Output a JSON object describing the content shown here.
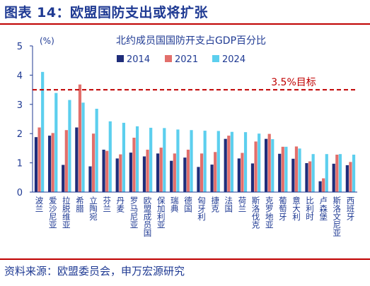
{
  "header": {
    "title": "图表 14：欧盟国防支出或将扩张"
  },
  "footer": {
    "source": "资料来源：欧盟委员会，申万宏源研究"
  },
  "chart_data": {
    "type": "bar",
    "title": "北约成员国国防开支占GDP百分比",
    "ylabel": "(%)",
    "xlabel": "",
    "ylim": [
      0,
      5
    ],
    "yticks": [
      0,
      1,
      2,
      3,
      4,
      5
    ],
    "grid": false,
    "legend_position": "top",
    "categories": [
      "波兰",
      "爱沙尼亚",
      "拉脱维亚",
      "希腊",
      "立陶宛",
      "芬兰",
      "丹麦",
      "罗马尼亚",
      "欧盟成员国",
      "保加利亚",
      "瑞典",
      "德国",
      "匈牙利",
      "捷克",
      "法国",
      "荷兰",
      "斯洛伐克",
      "克罗地亚",
      "葡萄牙",
      "意大利",
      "比利时",
      "卢森堡",
      "斯洛文尼亚",
      "西班牙"
    ],
    "series": [
      {
        "name": "2014",
        "color": "#1f2d7a",
        "values": [
          1.88,
          1.93,
          0.93,
          2.21,
          0.88,
          1.45,
          1.15,
          1.35,
          1.22,
          1.32,
          1.07,
          1.18,
          0.86,
          0.94,
          1.82,
          1.15,
          0.98,
          1.82,
          1.31,
          1.14,
          0.99,
          0.37,
          0.97,
          0.92
        ]
      },
      {
        "name": "2021",
        "color": "#e26f6b",
        "values": [
          2.21,
          2.02,
          2.12,
          3.68,
          2.0,
          1.41,
          1.29,
          1.86,
          1.45,
          1.52,
          1.32,
          1.45,
          1.32,
          1.37,
          1.93,
          1.34,
          1.73,
          1.99,
          1.55,
          1.56,
          1.05,
          0.47,
          1.28,
          1.03
        ]
      },
      {
        "name": "2024",
        "color": "#5ccfee",
        "values": [
          4.11,
          3.39,
          3.15,
          3.06,
          2.85,
          2.42,
          2.37,
          2.25,
          2.2,
          2.19,
          2.14,
          2.12,
          2.1,
          2.09,
          2.06,
          2.05,
          2.0,
          1.81,
          1.55,
          1.49,
          1.3,
          1.3,
          1.3,
          1.28
        ]
      }
    ],
    "reference_line": {
      "value": 3.5,
      "label": "3.5%目标",
      "color": "#c00000"
    }
  }
}
